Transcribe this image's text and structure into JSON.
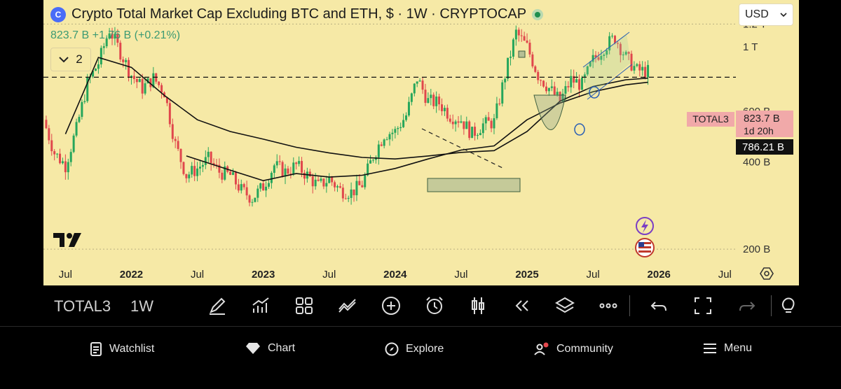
{
  "header": {
    "title": "Crypto Total Market Cap Excluding BTC and ETH, $ · 1W · CRYPTOCAP",
    "change": "823.7 B  +1.76 B (+0.21%)",
    "collapse_count": "2",
    "currency": "USD"
  },
  "chart_data": {
    "type": "candlestick",
    "symbol_label": "TOTAL3",
    "last_value_label": "823.7 B",
    "countdown_label": "1d 20h",
    "cursor_value_label": "786.21 B",
    "price_axis_labels": [
      "1.2 T",
      "1 T",
      "600 B",
      "400 B",
      "200 B"
    ],
    "time_axis_labels": [
      "Jul",
      "2022",
      "Jul",
      "2023",
      "Jul",
      "2024",
      "Jul",
      "2025",
      "Jul",
      "2026",
      "Jul"
    ],
    "ylim": [
      180,
      1300
    ],
    "y_scale": "log",
    "dashed_level": 786,
    "x_range": [
      "2021-05",
      "2026-08"
    ],
    "prices": [
      [
        "2021-05",
        560
      ],
      [
        "2021-06",
        430
      ],
      [
        "2021-07",
        390
      ],
      [
        "2021-08",
        520
      ],
      [
        "2021-09",
        750
      ],
      [
        "2021-10",
        880
      ],
      [
        "2021-11",
        1150
      ],
      [
        "2021-12",
        960
      ],
      [
        "2022-01",
        800
      ],
      [
        "2022-02",
        720
      ],
      [
        "2022-03",
        780
      ],
      [
        "2022-04",
        700
      ],
      [
        "2022-05",
        460
      ],
      [
        "2022-06",
        360
      ],
      [
        "2022-07",
        380
      ],
      [
        "2022-08",
        410
      ],
      [
        "2022-09",
        370
      ],
      [
        "2022-10",
        360
      ],
      [
        "2022-11",
        320
      ],
      [
        "2022-12",
        300
      ],
      [
        "2023-01",
        330
      ],
      [
        "2023-02",
        390
      ],
      [
        "2023-03",
        370
      ],
      [
        "2023-04",
        390
      ],
      [
        "2023-05",
        360
      ],
      [
        "2023-06",
        330
      ],
      [
        "2023-07",
        350
      ],
      [
        "2023-08",
        320
      ],
      [
        "2023-09",
        315
      ],
      [
        "2023-10",
        335
      ],
      [
        "2023-11",
        420
      ],
      [
        "2023-12",
        500
      ],
      [
        "2024-01",
        510
      ],
      [
        "2024-02",
        580
      ],
      [
        "2024-03",
        780
      ],
      [
        "2024-04",
        650
      ],
      [
        "2024-05",
        640
      ],
      [
        "2024-06",
        580
      ],
      [
        "2024-07",
        560
      ],
      [
        "2024-08",
        500
      ],
      [
        "2024-09",
        540
      ],
      [
        "2024-10",
        550
      ],
      [
        "2024-11",
        800
      ],
      [
        "2024-12",
        1120
      ],
      [
        "2025-01",
        1000
      ],
      [
        "2025-02",
        800
      ],
      [
        "2025-03",
        720
      ],
      [
        "2025-04",
        650
      ],
      [
        "2025-05",
        770
      ],
      [
        "2025-06",
        740
      ],
      [
        "2025-07",
        900
      ],
      [
        "2025-08",
        1000
      ],
      [
        "2025-09",
        1080
      ],
      [
        "2025-10",
        920
      ],
      [
        "2025-11",
        830
      ],
      [
        "2025-12",
        823.7
      ]
    ],
    "moving_averages": [
      {
        "points": [
          [
            "2021-07",
            500
          ],
          [
            "2021-10",
            920
          ],
          [
            "2022-01",
            850
          ],
          [
            "2022-04",
            680
          ],
          [
            "2022-07",
            560
          ],
          [
            "2022-10",
            510
          ],
          [
            "2023-01",
            480
          ],
          [
            "2023-04",
            450
          ],
          [
            "2023-07",
            430
          ],
          [
            "2023-10",
            415
          ],
          [
            "2024-01",
            410
          ],
          [
            "2024-04",
            420
          ],
          [
            "2024-07",
            432
          ],
          [
            "2024-10",
            438
          ],
          [
            "2025-01",
            510
          ],
          [
            "2025-04",
            650
          ],
          [
            "2025-07",
            730
          ],
          [
            "2025-10",
            770
          ],
          [
            "2025-12",
            780
          ]
        ]
      },
      {
        "points": [
          [
            "2022-06",
            420
          ],
          [
            "2022-10",
            375
          ],
          [
            "2023-01",
            345
          ],
          [
            "2023-04",
            365
          ],
          [
            "2023-07",
            355
          ],
          [
            "2023-10",
            360
          ],
          [
            "2024-01",
            380
          ],
          [
            "2024-04",
            410
          ],
          [
            "2024-07",
            440
          ],
          [
            "2024-10",
            455
          ],
          [
            "2025-01",
            560
          ],
          [
            "2025-04",
            640
          ],
          [
            "2025-07",
            700
          ],
          [
            "2025-10",
            740
          ],
          [
            "2025-12",
            755
          ]
        ]
      }
    ]
  },
  "toolbar": {
    "symbol": "TOTAL3",
    "interval": "1W"
  },
  "nav": {
    "watchlist": "Watchlist",
    "chart": "Chart",
    "explore": "Explore",
    "community": "Community",
    "menu": "Menu"
  }
}
